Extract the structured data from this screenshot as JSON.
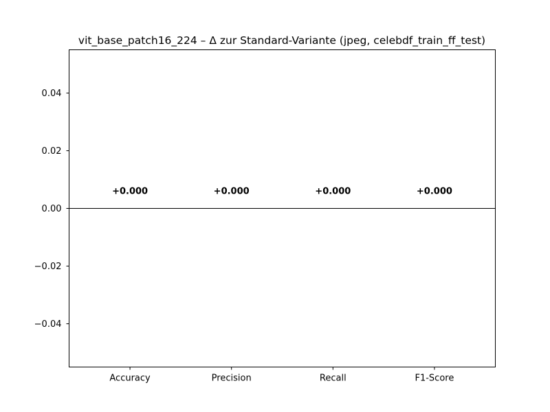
{
  "chart_data": {
    "type": "bar",
    "title": "vit_base_patch16_224 – Δ zur Standard-Variante (jpeg, celebdf_train_ff_test)",
    "xlabel": "",
    "ylabel": "",
    "categories": [
      "Accuracy",
      "Precision",
      "Recall",
      "F1-Score"
    ],
    "values": [
      0.0,
      0.0,
      0.0,
      0.0
    ],
    "data_labels": [
      "+0.000",
      "+0.000",
      "+0.000",
      "+0.000"
    ],
    "ylim": [
      -0.055,
      0.055
    ],
    "yticks": [
      -0.04,
      -0.02,
      0.0,
      0.02,
      0.04
    ],
    "ytick_labels": [
      "−0.04",
      "−0.02",
      "0.00",
      "0.02",
      "0.04"
    ],
    "zero_line": true,
    "grid": false,
    "legend": "none"
  }
}
